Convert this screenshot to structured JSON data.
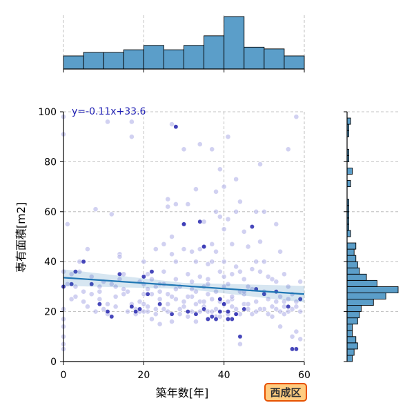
{
  "chart_data": {
    "type": "scatter",
    "xlabel": "築年数[年]",
    "ylabel": "専有面積[m2]",
    "xlim": [
      0,
      60
    ],
    "ylim": [
      0,
      100
    ],
    "xticks": [
      0,
      20,
      40,
      60
    ],
    "yticks": [
      0,
      20,
      40,
      60,
      80,
      100
    ],
    "grid": true,
    "regression": {
      "label": "y=-0.11x+33.6",
      "slope": -0.11,
      "intercept": 33.6,
      "color": "#1f77b4"
    },
    "badge": {
      "text": "西成区",
      "fill": "#ffcc80",
      "stroke": "#e65100"
    },
    "colors": {
      "point_light": "#b8b8ea",
      "point_dark": "#1a1aaa",
      "bar": "#5b9ec9",
      "grid": "#b0b0b0"
    },
    "points": [
      [
        0,
        98
      ],
      [
        0,
        91
      ],
      [
        1,
        55
      ],
      [
        0,
        36
      ],
      [
        1,
        31
      ],
      [
        0,
        21
      ],
      [
        0,
        17
      ],
      [
        0,
        14
      ],
      [
        0,
        10
      ],
      [
        0,
        7
      ],
      [
        0,
        5
      ],
      [
        2,
        35
      ],
      [
        2,
        25
      ],
      [
        3,
        30
      ],
      [
        3,
        26
      ],
      [
        4,
        36
      ],
      [
        4,
        40
      ],
      [
        5,
        28
      ],
      [
        5,
        24
      ],
      [
        6,
        22
      ],
      [
        6,
        45
      ],
      [
        7,
        27
      ],
      [
        7,
        34
      ],
      [
        8,
        20
      ],
      [
        8,
        61
      ],
      [
        9,
        30
      ],
      [
        9,
        28
      ],
      [
        9,
        25
      ],
      [
        10,
        32
      ],
      [
        10,
        21
      ],
      [
        11,
        23
      ],
      [
        11,
        19
      ],
      [
        11,
        96
      ],
      [
        12,
        59
      ],
      [
        12,
        31
      ],
      [
        13,
        26
      ],
      [
        13,
        22
      ],
      [
        14,
        43
      ],
      [
        14,
        42
      ],
      [
        14,
        33
      ],
      [
        15,
        35
      ],
      [
        15,
        29
      ],
      [
        16,
        28
      ],
      [
        16,
        20
      ],
      [
        17,
        96
      ],
      [
        17,
        90
      ],
      [
        17,
        22
      ],
      [
        18,
        21
      ],
      [
        18,
        19
      ],
      [
        19,
        32
      ],
      [
        19,
        24
      ],
      [
        20,
        40
      ],
      [
        20,
        31
      ],
      [
        20,
        27
      ],
      [
        20,
        23
      ],
      [
        21,
        35
      ],
      [
        21,
        29
      ],
      [
        21,
        20
      ],
      [
        22,
        33
      ],
      [
        22,
        17
      ],
      [
        23,
        45
      ],
      [
        23,
        30
      ],
      [
        23,
        21
      ],
      [
        24,
        28
      ],
      [
        24,
        15
      ],
      [
        25,
        36
      ],
      [
        25,
        31
      ],
      [
        25,
        47
      ],
      [
        26,
        65
      ],
      [
        26,
        62
      ],
      [
        26,
        27
      ],
      [
        26,
        20
      ],
      [
        27,
        95
      ],
      [
        27,
        50
      ],
      [
        27,
        43
      ],
      [
        27,
        16
      ],
      [
        28,
        94
      ],
      [
        28,
        63
      ],
      [
        28,
        40
      ],
      [
        28,
        25
      ],
      [
        29,
        19
      ],
      [
        29,
        30
      ],
      [
        30,
        85
      ],
      [
        30,
        55
      ],
      [
        30,
        45
      ],
      [
        30,
        22
      ],
      [
        31,
        63
      ],
      [
        31,
        35
      ],
      [
        31,
        18
      ],
      [
        32,
        44
      ],
      [
        32,
        26
      ],
      [
        32,
        20
      ],
      [
        33,
        69
      ],
      [
        33,
        40
      ],
      [
        33,
        28
      ],
      [
        33,
        16
      ],
      [
        34,
        87
      ],
      [
        34,
        45
      ],
      [
        34,
        34
      ],
      [
        34,
        24
      ],
      [
        35,
        56
      ],
      [
        35,
        46
      ],
      [
        35,
        30
      ],
      [
        35,
        22
      ],
      [
        36,
        39
      ],
      [
        36,
        33
      ],
      [
        36,
        20
      ],
      [
        37,
        85
      ],
      [
        37,
        47
      ],
      [
        37,
        40
      ],
      [
        37,
        25
      ],
      [
        38,
        68
      ],
      [
        38,
        60
      ],
      [
        38,
        44
      ],
      [
        38,
        28
      ],
      [
        38,
        18
      ],
      [
        39,
        77
      ],
      [
        39,
        58
      ],
      [
        39,
        36
      ],
      [
        39,
        24
      ],
      [
        40,
        70
      ],
      [
        40,
        53
      ],
      [
        40,
        40
      ],
      [
        40,
        23
      ],
      [
        41,
        90
      ],
      [
        41,
        57
      ],
      [
        41,
        31
      ],
      [
        41,
        19
      ],
      [
        42,
        47
      ],
      [
        42,
        35
      ],
      [
        42,
        25
      ],
      [
        43,
        73
      ],
      [
        43,
        60
      ],
      [
        43,
        38
      ],
      [
        43,
        19
      ],
      [
        44,
        64
      ],
      [
        44,
        36
      ],
      [
        44,
        28
      ],
      [
        44,
        7
      ],
      [
        45,
        52
      ],
      [
        45,
        33
      ],
      [
        45,
        27
      ],
      [
        46,
        46
      ],
      [
        46,
        30
      ],
      [
        46,
        21
      ],
      [
        47,
        37
      ],
      [
        47,
        29
      ],
      [
        48,
        60
      ],
      [
        48,
        40
      ],
      [
        48,
        24
      ],
      [
        49,
        79
      ],
      [
        49,
        48
      ],
      [
        49,
        36
      ],
      [
        50,
        60
      ],
      [
        50,
        40
      ],
      [
        50,
        28
      ],
      [
        51,
        34
      ],
      [
        51,
        19
      ],
      [
        52,
        33
      ],
      [
        52,
        22
      ],
      [
        53,
        55
      ],
      [
        53,
        32
      ],
      [
        53,
        21
      ],
      [
        54,
        44
      ],
      [
        54,
        26
      ],
      [
        54,
        14
      ],
      [
        55,
        35
      ],
      [
        55,
        22
      ],
      [
        56,
        85
      ],
      [
        56,
        30
      ],
      [
        56,
        20
      ],
      [
        57,
        27
      ],
      [
        57,
        10
      ],
      [
        58,
        98
      ],
      [
        58,
        24
      ],
      [
        58,
        12
      ],
      [
        59,
        32
      ],
      [
        59,
        9
      ],
      [
        59,
        20
      ],
      [
        40,
        30
      ],
      [
        42,
        26
      ],
      [
        38,
        21
      ],
      [
        35,
        24
      ],
      [
        33,
        23
      ],
      [
        31,
        26
      ],
      [
        29,
        21
      ],
      [
        27,
        26
      ],
      [
        25,
        21
      ],
      [
        23,
        19
      ],
      [
        21,
        22
      ],
      [
        19,
        20
      ],
      [
        17,
        23
      ],
      [
        15,
        27
      ],
      [
        13,
        30
      ],
      [
        45,
        23
      ],
      [
        47,
        19
      ],
      [
        50,
        21
      ],
      [
        52,
        18
      ],
      [
        55,
        24
      ],
      [
        57,
        21
      ],
      [
        36,
        27
      ],
      [
        34,
        20
      ],
      [
        32,
        29
      ],
      [
        30,
        24
      ],
      [
        28,
        29
      ],
      [
        26,
        23
      ],
      [
        24,
        25
      ],
      [
        22,
        27
      ],
      [
        20,
        20
      ],
      [
        41,
        24
      ],
      [
        43,
        21
      ],
      [
        45,
        28
      ],
      [
        48,
        20
      ],
      [
        51,
        25
      ],
      [
        54,
        20
      ],
      [
        56,
        25
      ],
      [
        58,
        22
      ],
      [
        37,
        20
      ],
      [
        39,
        18
      ],
      [
        42,
        22
      ],
      [
        44,
        19
      ],
      [
        46,
        23
      ],
      [
        49,
        21
      ],
      [
        53,
        24
      ],
      [
        55,
        19
      ],
      [
        40,
        34
      ],
      [
        36,
        31
      ],
      [
        32,
        32
      ],
      [
        28,
        33
      ],
      [
        24,
        31
      ]
    ],
    "dark_points": [
      [
        0,
        30
      ],
      [
        2,
        31
      ],
      [
        3,
        36
      ],
      [
        5,
        40
      ],
      [
        7,
        31
      ],
      [
        9,
        23
      ],
      [
        11,
        20
      ],
      [
        12,
        18
      ],
      [
        14,
        35
      ],
      [
        17,
        22
      ],
      [
        18,
        20
      ],
      [
        19,
        21
      ],
      [
        20,
        34
      ],
      [
        21,
        27
      ],
      [
        22,
        36
      ],
      [
        24,
        23
      ],
      [
        27,
        19
      ],
      [
        28,
        94
      ],
      [
        30,
        55
      ],
      [
        31,
        20
      ],
      [
        33,
        19
      ],
      [
        35,
        46
      ],
      [
        35,
        21
      ],
      [
        37,
        18
      ],
      [
        38,
        17
      ],
      [
        39,
        25
      ],
      [
        40,
        23
      ],
      [
        41,
        20
      ],
      [
        42,
        17
      ],
      [
        43,
        19
      ],
      [
        44,
        10
      ],
      [
        45,
        21
      ],
      [
        47,
        54
      ],
      [
        48,
        29
      ],
      [
        50,
        27
      ],
      [
        53,
        28
      ],
      [
        56,
        22
      ],
      [
        57,
        5
      ],
      [
        58,
        5
      ],
      [
        59,
        25
      ],
      [
        36,
        17
      ],
      [
        39,
        20
      ],
      [
        41,
        17
      ],
      [
        34,
        56
      ]
    ],
    "top_hist": {
      "bins": [
        0,
        5,
        10,
        15,
        20,
        25,
        30,
        35,
        40,
        45,
        50,
        55,
        60
      ],
      "counts": [
        15,
        19,
        19,
        22,
        27,
        22,
        27,
        38,
        60,
        25,
        23,
        15,
        22
      ]
    },
    "right_hist": {
      "bin_width": 2.5,
      "counts": [
        3,
        4,
        6,
        5,
        3,
        3,
        6,
        7,
        8,
        15,
        22,
        29,
        17,
        11,
        7,
        6,
        5,
        4,
        5,
        0,
        2,
        1,
        1,
        1,
        1,
        1,
        0,
        0,
        2,
        0,
        3,
        0,
        1,
        1,
        0,
        0,
        1,
        1,
        2
      ]
    }
  }
}
